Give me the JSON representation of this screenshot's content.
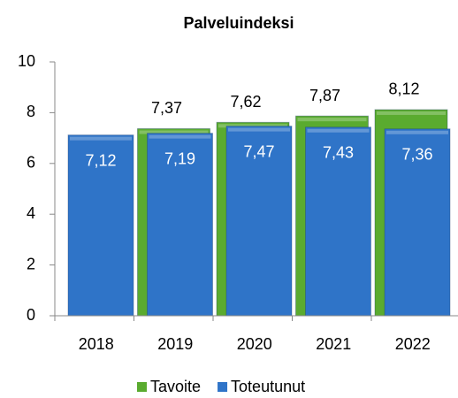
{
  "chart_data": {
    "type": "bar",
    "title": "Palveluindeksi",
    "categories": [
      "2018",
      "2019",
      "2020",
      "2021",
      "2022"
    ],
    "series": [
      {
        "name": "Tavoite",
        "color": "#5aab2f",
        "values": [
          null,
          7.37,
          7.62,
          7.87,
          8.12
        ],
        "value_labels": [
          null,
          "7,37",
          "7,62",
          "7,87",
          "8,12"
        ]
      },
      {
        "name": "Toteutunut",
        "color": "#2f74c8",
        "values": [
          7.12,
          7.19,
          7.47,
          7.43,
          7.36
        ],
        "value_labels": [
          "7,12",
          "7,19",
          "7,47",
          "7,43",
          "7,36"
        ]
      }
    ],
    "ylim": [
      0,
      10
    ],
    "yticks": [
      0,
      2,
      4,
      6,
      8,
      10
    ],
    "legend": "bottom"
  }
}
